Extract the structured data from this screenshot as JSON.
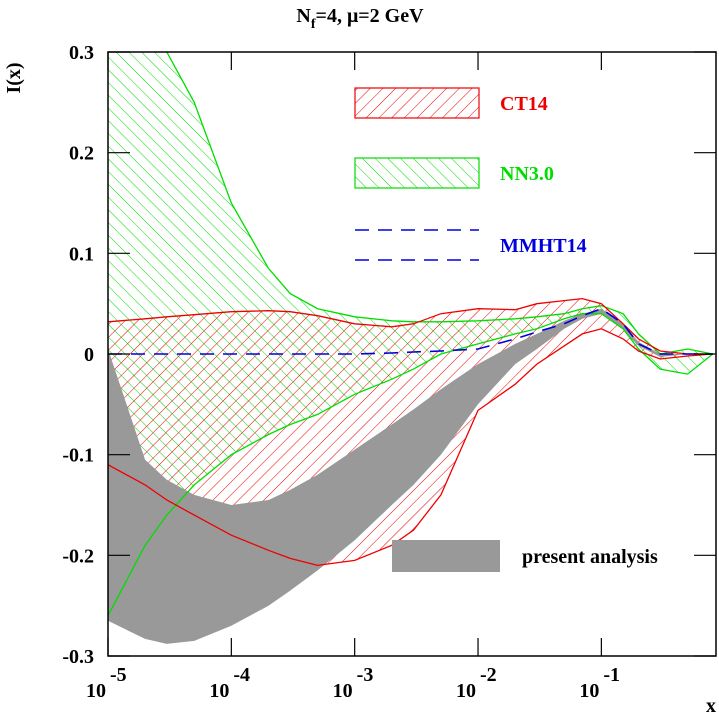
{
  "chart_data": {
    "type": "area",
    "title": {
      "main": "N",
      "sub": "f",
      "rest": "=4, μ=2 GeV"
    },
    "y_label": "I(x)",
    "x_label": "x",
    "x_scale": "log",
    "xlim": [
      1e-05,
      0.85
    ],
    "ylim": [
      -0.3,
      0.3
    ],
    "xticks": [
      {
        "value": 1e-05,
        "label": "10",
        "exponent": "-5"
      },
      {
        "value": 0.0001,
        "label": "10",
        "exponent": "-4"
      },
      {
        "value": 0.001,
        "label": "10",
        "exponent": "-3"
      },
      {
        "value": 0.01,
        "label": "10",
        "exponent": "-2"
      },
      {
        "value": 0.1,
        "label": "10",
        "exponent": "-1"
      }
    ],
    "yticks": [
      -0.3,
      -0.2,
      -0.1,
      0,
      0.1,
      0.2,
      0.3
    ],
    "x": [
      1e-05,
      2e-05,
      3e-05,
      5e-05,
      0.0001,
      0.0002,
      0.0003,
      0.0005,
      0.001,
      0.002,
      0.003,
      0.005,
      0.01,
      0.02,
      0.03,
      0.05,
      0.07,
      0.1,
      0.15,
      0.2,
      0.3,
      0.5,
      0.8
    ],
    "series": [
      {
        "name": "NN3.0",
        "color": "#00dd00",
        "style": "hatch-back",
        "upper": [
          0.33,
          0.31,
          0.3,
          0.25,
          0.15,
          0.085,
          0.06,
          0.045,
          0.037,
          0.033,
          0.032,
          0.032,
          0.033,
          0.035,
          0.037,
          0.04,
          0.045,
          0.048,
          0.04,
          0.02,
          0.0,
          0.005,
          0.0
        ],
        "lower": [
          -0.26,
          -0.19,
          -0.16,
          -0.13,
          -0.1,
          -0.08,
          -0.07,
          -0.06,
          -0.04,
          -0.025,
          -0.015,
          0.0,
          0.01,
          0.02,
          0.025,
          0.035,
          0.04,
          0.04,
          0.025,
          0.005,
          -0.015,
          -0.02,
          0.0
        ]
      },
      {
        "name": "CT14",
        "color": "#ee0000",
        "style": "hatch-fwd",
        "upper": [
          0.032,
          0.035,
          0.037,
          0.039,
          0.042,
          0.043,
          0.042,
          0.038,
          0.03,
          0.027,
          0.03,
          0.04,
          0.045,
          0.044,
          0.05,
          0.053,
          0.055,
          0.05,
          0.03,
          0.015,
          0.003,
          0.0,
          0.0
        ],
        "lower": [
          -0.11,
          -0.13,
          -0.145,
          -0.16,
          -0.18,
          -0.195,
          -0.203,
          -0.21,
          -0.205,
          -0.19,
          -0.175,
          -0.14,
          -0.056,
          -0.03,
          -0.01,
          0.008,
          0.02,
          0.025,
          0.015,
          0.003,
          -0.005,
          -0.002,
          0.0
        ]
      },
      {
        "name": "present analysis",
        "color": "#999999",
        "style": "solid",
        "upper": [
          0.005,
          -0.105,
          -0.125,
          -0.14,
          -0.15,
          -0.145,
          -0.135,
          -0.12,
          -0.095,
          -0.07,
          -0.055,
          -0.035,
          -0.01,
          0.01,
          0.02,
          0.033,
          0.04,
          0.045,
          0.03,
          0.012,
          0.0,
          0.0,
          0.0
        ],
        "lower": [
          -0.265,
          -0.283,
          -0.288,
          -0.285,
          -0.27,
          -0.25,
          -0.235,
          -0.215,
          -0.185,
          -0.15,
          -0.13,
          -0.1,
          -0.05,
          -0.01,
          0.005,
          0.025,
          0.035,
          0.04,
          0.025,
          0.008,
          -0.003,
          0.0,
          0.0
        ]
      },
      {
        "name": "MMHT14",
        "color": "#0000dd",
        "style": "dashed",
        "values": [
          0,
          0,
          0,
          0,
          0,
          0,
          0,
          0,
          0,
          0.001,
          0.002,
          0.003,
          0.005,
          0.015,
          0.022,
          0.03,
          0.038,
          0.045,
          0.03,
          0.01,
          0.0,
          0.0,
          0.0
        ]
      }
    ]
  }
}
